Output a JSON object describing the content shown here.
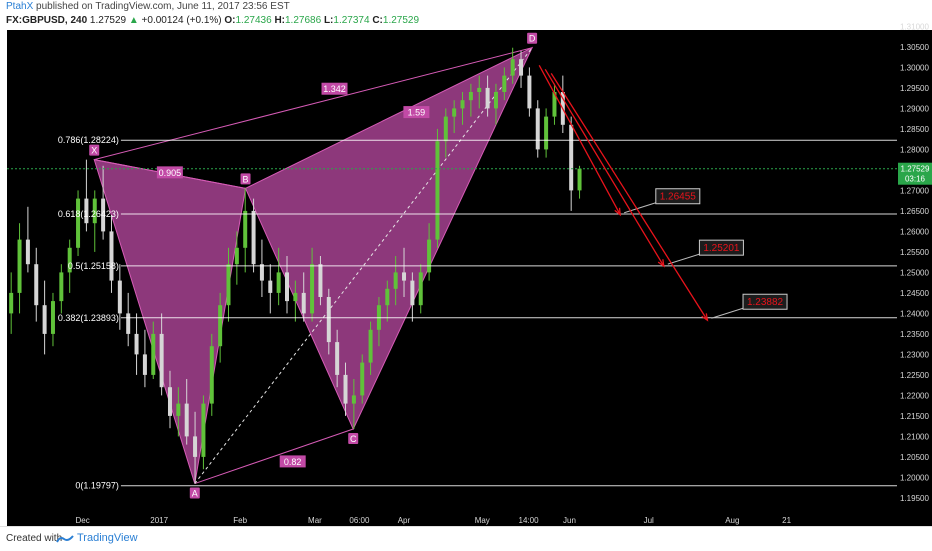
{
  "header": {
    "author": "PtahX",
    "published": " published on TradingView.com, June 11, 2017 23:56 EST",
    "symbol": "FX:GBPUSD, 240",
    "last": "1.27529",
    "change_arrow": "▲",
    "change": "+0.00124 (+0.1%)",
    "o_label": "O:",
    "o": "1.27436",
    "h_label": "H:",
    "h": "1.27686",
    "l_label": "L:",
    "l": "1.27374",
    "c_label": "C:",
    "c": "1.27529"
  },
  "footer": {
    "created_with": "Created with",
    "brand": "TradingView"
  },
  "colors": {
    "background": "#000000",
    "pattern_fill": "#a0408c",
    "pattern_line": "#d65bb6",
    "fib_line": "#ffffff",
    "target_arrow": "#e8131b",
    "target_text": "#e8131b",
    "current_price_line": "#2aa64a",
    "candle_up": "#60c23a",
    "candle_down": "#d6d6d6"
  },
  "chart_data": {
    "type": "candlestick",
    "symbol": "FX:GBPUSD",
    "interval": "240",
    "ylim": [
      1.195,
      1.31
    ],
    "yticks": [
      "1.31000",
      "1.30500",
      "1.30000",
      "1.29500",
      "1.29000",
      "1.28500",
      "1.28000",
      "1.27500",
      "1.27000",
      "1.26500",
      "1.26000",
      "1.25500",
      "1.25000",
      "1.24500",
      "1.24000",
      "1.23500",
      "1.23000",
      "1.22500",
      "1.22000",
      "1.21500",
      "1.21000",
      "1.20500",
      "1.20000",
      "1.19500"
    ],
    "yticks_values": [
      1.31,
      1.305,
      1.3,
      1.295,
      1.29,
      1.285,
      1.28,
      1.275,
      1.27,
      1.265,
      1.26,
      1.255,
      1.25,
      1.245,
      1.24,
      1.235,
      1.23,
      1.225,
      1.22,
      1.215,
      1.21,
      1.205,
      1.2,
      1.195
    ],
    "xticks": [
      "Dec",
      "2017",
      "Feb",
      "Mar",
      "06:00",
      "Apr",
      "May",
      "14:00",
      "Jun",
      "Jul",
      "Aug",
      "21"
    ],
    "xticks_t": [
      0.085,
      0.171,
      0.262,
      0.346,
      0.396,
      0.446,
      0.534,
      0.586,
      0.632,
      0.721,
      0.815,
      0.876
    ],
    "current_price": {
      "value": 1.27529,
      "label": "1.27529",
      "countdown": "03:16"
    },
    "fib_levels": [
      {
        "label": "0.786(1.28224)",
        "value": 1.28224
      },
      {
        "label": "0.618(1.26423)",
        "value": 1.26423
      },
      {
        "label": "0.5(1.25158)",
        "value": 1.25158
      },
      {
        "label": "0.382(1.23893)",
        "value": 1.23893
      },
      {
        "label": "0(1.19797)",
        "value": 1.19797
      }
    ],
    "harmonic_points": [
      {
        "name": "X",
        "t": 0.098,
        "value": 1.2775
      },
      {
        "name": "A",
        "t": 0.211,
        "value": 1.1985
      },
      {
        "name": "B",
        "t": 0.268,
        "value": 1.2705
      },
      {
        "name": "C",
        "t": 0.389,
        "value": 1.2118
      },
      {
        "name": "D",
        "t": 0.59,
        "value": 1.3048
      }
    ],
    "ratios": [
      {
        "label": "0.905",
        "t": 0.183,
        "value": 1.2744
      },
      {
        "label": "1.342",
        "t": 0.368,
        "value": 1.2948
      },
      {
        "label": "1.59",
        "t": 0.46,
        "value": 1.2891
      },
      {
        "label": "0.82",
        "t": 0.321,
        "value": 1.2039
      }
    ],
    "targets": [
      {
        "label": "1.26455",
        "value": 1.26455
      },
      {
        "label": "1.25201",
        "value": 1.25201
      },
      {
        "label": "1.23882",
        "value": 1.23882
      }
    ],
    "ohlc_daily": [
      [
        1.24,
        1.25,
        1.235,
        1.245
      ],
      [
        1.245,
        1.262,
        1.24,
        1.258
      ],
      [
        1.258,
        1.266,
        1.25,
        1.252
      ],
      [
        1.252,
        1.256,
        1.238,
        1.242
      ],
      [
        1.242,
        1.248,
        1.23,
        1.235
      ],
      [
        1.235,
        1.245,
        1.232,
        1.243
      ],
      [
        1.243,
        1.252,
        1.24,
        1.25
      ],
      [
        1.25,
        1.258,
        1.245,
        1.256
      ],
      [
        1.256,
        1.27,
        1.254,
        1.268
      ],
      [
        1.268,
        1.2775,
        1.26,
        1.262
      ],
      [
        1.262,
        1.27,
        1.255,
        1.268
      ],
      [
        1.268,
        1.276,
        1.258,
        1.26
      ],
      [
        1.26,
        1.264,
        1.245,
        1.248
      ],
      [
        1.248,
        1.252,
        1.236,
        1.24
      ],
      [
        1.24,
        1.245,
        1.232,
        1.235
      ],
      [
        1.235,
        1.24,
        1.225,
        1.23
      ],
      [
        1.23,
        1.236,
        1.222,
        1.225
      ],
      [
        1.225,
        1.238,
        1.224,
        1.235
      ],
      [
        1.235,
        1.24,
        1.22,
        1.222
      ],
      [
        1.222,
        1.226,
        1.212,
        1.215
      ],
      [
        1.215,
        1.222,
        1.21,
        1.218
      ],
      [
        1.218,
        1.224,
        1.208,
        1.21
      ],
      [
        1.21,
        1.216,
        1.1985,
        1.205
      ],
      [
        1.205,
        1.22,
        1.202,
        1.218
      ],
      [
        1.218,
        1.235,
        1.215,
        1.232
      ],
      [
        1.232,
        1.245,
        1.228,
        1.242
      ],
      [
        1.242,
        1.256,
        1.238,
        1.252
      ],
      [
        1.252,
        1.26,
        1.247,
        1.256
      ],
      [
        1.256,
        1.2705,
        1.25,
        1.265
      ],
      [
        1.265,
        1.268,
        1.25,
        1.252
      ],
      [
        1.252,
        1.258,
        1.244,
        1.248
      ],
      [
        1.248,
        1.252,
        1.24,
        1.245
      ],
      [
        1.245,
        1.256,
        1.242,
        1.25
      ],
      [
        1.25,
        1.254,
        1.24,
        1.243
      ],
      [
        1.243,
        1.248,
        1.238,
        1.245
      ],
      [
        1.245,
        1.25,
        1.238,
        1.24
      ],
      [
        1.24,
        1.256,
        1.238,
        1.252
      ],
      [
        1.252,
        1.254,
        1.242,
        1.244
      ],
      [
        1.244,
        1.246,
        1.23,
        1.233
      ],
      [
        1.233,
        1.236,
        1.222,
        1.225
      ],
      [
        1.225,
        1.228,
        1.215,
        1.218
      ],
      [
        1.218,
        1.224,
        1.2118,
        1.22
      ],
      [
        1.22,
        1.23,
        1.218,
        1.228
      ],
      [
        1.228,
        1.238,
        1.225,
        1.236
      ],
      [
        1.236,
        1.244,
        1.232,
        1.242
      ],
      [
        1.242,
        1.248,
        1.238,
        1.246
      ],
      [
        1.246,
        1.254,
        1.242,
        1.25
      ],
      [
        1.25,
        1.256,
        1.244,
        1.248
      ],
      [
        1.248,
        1.25,
        1.238,
        1.242
      ],
      [
        1.242,
        1.252,
        1.24,
        1.25
      ],
      [
        1.25,
        1.262,
        1.248,
        1.258
      ],
      [
        1.258,
        1.285,
        1.256,
        1.282
      ],
      [
        1.282,
        1.29,
        1.278,
        1.288
      ],
      [
        1.288,
        1.292,
        1.284,
        1.29
      ],
      [
        1.29,
        1.294,
        1.286,
        1.292
      ],
      [
        1.292,
        1.296,
        1.288,
        1.294
      ],
      [
        1.294,
        1.298,
        1.29,
        1.295
      ],
      [
        1.295,
        1.298,
        1.288,
        1.29
      ],
      [
        1.29,
        1.296,
        1.286,
        1.294
      ],
      [
        1.294,
        1.3,
        1.292,
        1.298
      ],
      [
        1.298,
        1.3048,
        1.296,
        1.302
      ],
      [
        1.302,
        1.304,
        1.295,
        1.298
      ],
      [
        1.298,
        1.3,
        1.288,
        1.29
      ],
      [
        1.29,
        1.292,
        1.278,
        1.28
      ],
      [
        1.28,
        1.29,
        1.278,
        1.288
      ],
      [
        1.288,
        1.296,
        1.286,
        1.294
      ],
      [
        1.294,
        1.298,
        1.284,
        1.286
      ],
      [
        1.286,
        1.288,
        1.265,
        1.27
      ],
      [
        1.27,
        1.276,
        1.268,
        1.2753
      ]
    ]
  }
}
